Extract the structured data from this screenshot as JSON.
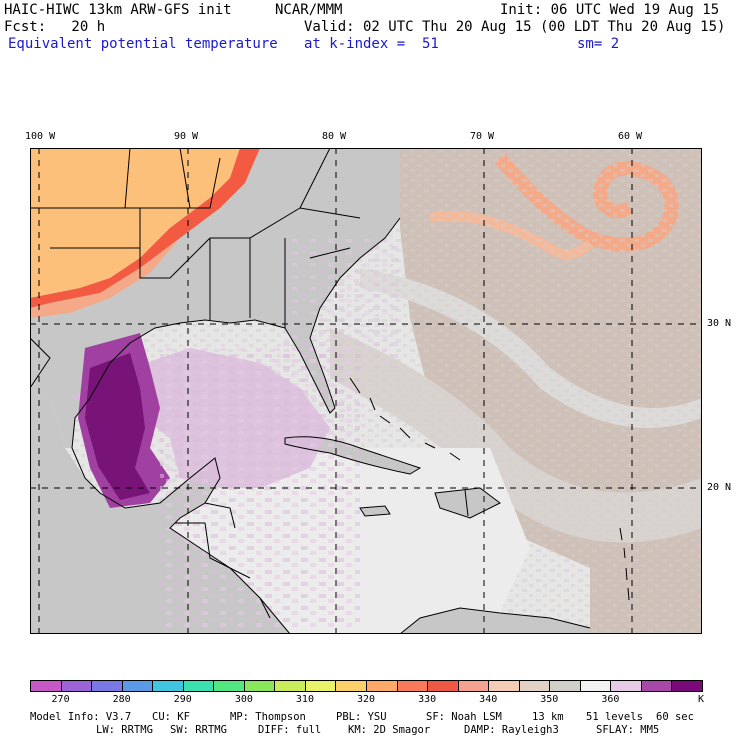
{
  "header": {
    "model": "HAIC-HIWC 13km ARW-GFS init",
    "org": "NCAR/MMM",
    "init": "Init: 06 UTC Wed 19 Aug 15",
    "fcst": "Fcst:   20 h",
    "valid": "Valid: 02 UTC Thu 20 Aug 15 (00 LDT Thu 20 Aug 15)",
    "field": "Equivalent potential temperature",
    "level": "at k-index =  51",
    "smooth": "sm= 2"
  },
  "map": {
    "lon_labels": [
      "100 W",
      "90 W",
      "80 W",
      "70 W",
      "60 W"
    ],
    "lat_labels": [
      "30 N",
      "20 N"
    ],
    "colors": {
      "ocean": "#e6e6e6",
      "land": "#c7c7c7",
      "warm": "#cfc0b8",
      "purple_light": "#dcbcdc",
      "purple": "#9c3c9c",
      "purple_dark": "#781478",
      "orange": "#fdc07a",
      "salmon": "#f4a988",
      "red": "#f25a42"
    }
  },
  "colorbar": {
    "colors": [
      "#c659c6",
      "#9c64d6",
      "#7a78e6",
      "#5a9ae6",
      "#40c4e0",
      "#3ce0b0",
      "#54e680",
      "#8ae65c",
      "#c8ec5c",
      "#eaf26a",
      "#fbd06a",
      "#fca96a",
      "#f87a5a",
      "#ef5842",
      "#f6a090",
      "#f4cbb4",
      "#e2d2c6",
      "#d2cec8",
      "#f2f2f2",
      "#e6cae6",
      "#a848a8",
      "#7a0a7a"
    ],
    "labels": [
      "270",
      "280",
      "290",
      "300",
      "310",
      "320",
      "330",
      "340",
      "350",
      "360"
    ],
    "unit": "K"
  },
  "footer": {
    "line1": [
      "Model Info: V3.7",
      "CU: KF",
      "MP: Thompson",
      "PBL: YSU",
      "SF: Noah LSM",
      "13 km",
      "51 levels",
      "60 sec"
    ],
    "line2": [
      "LW: RRTMG",
      "SW: RRTMG",
      "DIFF: full",
      "KM: 2D Smagor",
      "DAMP: Rayleigh3",
      "SFLAY: MM5"
    ]
  }
}
